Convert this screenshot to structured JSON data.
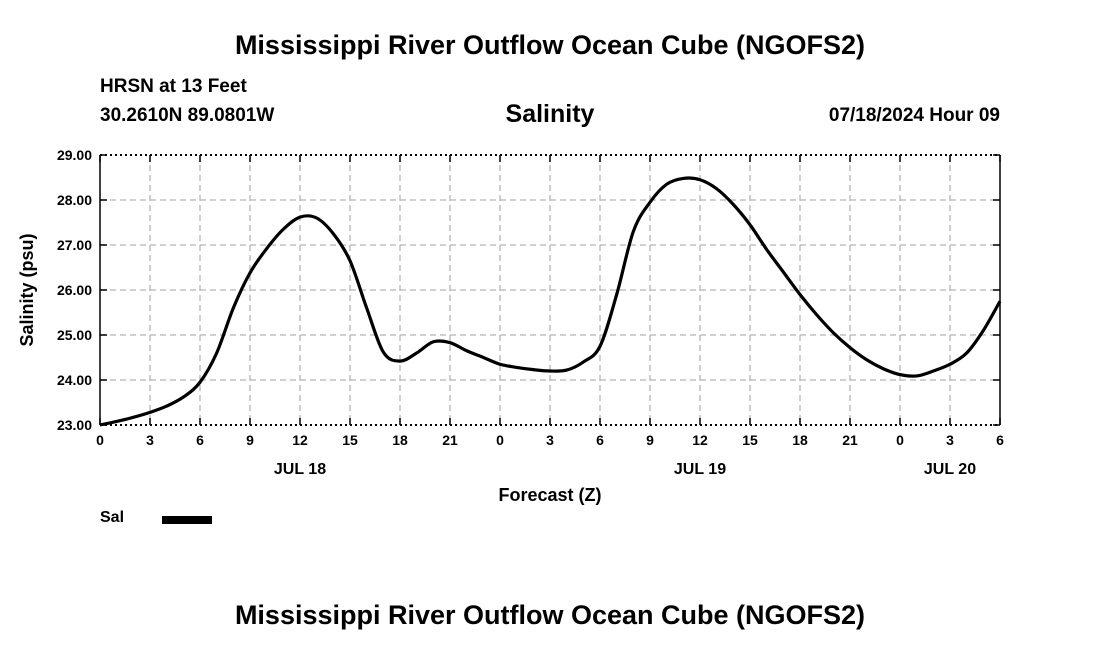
{
  "header": {
    "title": "Mississippi River Outflow Ocean Cube (NGOFS2)",
    "station": "HRSN at 13 Feet",
    "coords": "30.2610N  89.0801W",
    "variable": "Salinity",
    "datetime": "07/18/2024 Hour 09"
  },
  "legend": {
    "label": "Sal"
  },
  "footer": {
    "title": "Mississippi River Outflow Ocean Cube (NGOFS2)"
  },
  "chart_data": {
    "type": "line",
    "title": "Salinity",
    "xlabel": "Forecast (Z)",
    "ylabel": "Salinity (psu)",
    "xlim": [
      0,
      54
    ],
    "ylim": [
      23.0,
      29.0
    ],
    "grid": true,
    "legend_position": "bottom-left",
    "x_tick_values": [
      0,
      3,
      6,
      9,
      12,
      15,
      18,
      21,
      24,
      27,
      30,
      33,
      36,
      39,
      42,
      45,
      48,
      51,
      54
    ],
    "x_tick_labels": [
      "0",
      "3",
      "6",
      "9",
      "12",
      "15",
      "18",
      "21",
      "0",
      "3",
      "6",
      "9",
      "12",
      "15",
      "18",
      "21",
      "0",
      "3",
      "6"
    ],
    "y_ticks": [
      23.0,
      24.0,
      25.0,
      26.0,
      27.0,
      28.0,
      29.0
    ],
    "y_tick_labels": [
      "23.00",
      "24.00",
      "25.00",
      "26.00",
      "27.00",
      "28.00",
      "29.00"
    ],
    "date_labels": [
      {
        "x": 12,
        "label": "JUL 18"
      },
      {
        "x": 36,
        "label": "JUL 19"
      },
      {
        "x": 51,
        "label": "JUL 20"
      }
    ],
    "series": [
      {
        "name": "Sal",
        "color": "#000000",
        "x": [
          0,
          1,
          2,
          3,
          4,
          5,
          6,
          7,
          8,
          9,
          10,
          11,
          12,
          13,
          14,
          15,
          16,
          17,
          18,
          19,
          20,
          21,
          22,
          23,
          24,
          25,
          26,
          27,
          28,
          29,
          30,
          31,
          32,
          33,
          34,
          35,
          36,
          37,
          38,
          39,
          40,
          41,
          42,
          43,
          44,
          45,
          46,
          47,
          48,
          49,
          50,
          51,
          52,
          53,
          54
        ],
        "y": [
          23.0,
          23.08,
          23.17,
          23.28,
          23.42,
          23.62,
          23.95,
          24.6,
          25.6,
          26.38,
          26.92,
          27.35,
          27.62,
          27.6,
          27.25,
          26.65,
          25.6,
          24.62,
          24.42,
          24.6,
          24.85,
          24.83,
          24.65,
          24.5,
          24.35,
          24.28,
          24.23,
          24.2,
          24.22,
          24.4,
          24.75,
          25.9,
          27.3,
          27.95,
          28.35,
          28.48,
          28.45,
          28.25,
          27.9,
          27.45,
          26.9,
          26.4,
          25.9,
          25.45,
          25.05,
          24.72,
          24.45,
          24.25,
          24.12,
          24.09,
          24.2,
          24.35,
          24.6,
          25.1,
          25.75
        ]
      }
    ]
  }
}
